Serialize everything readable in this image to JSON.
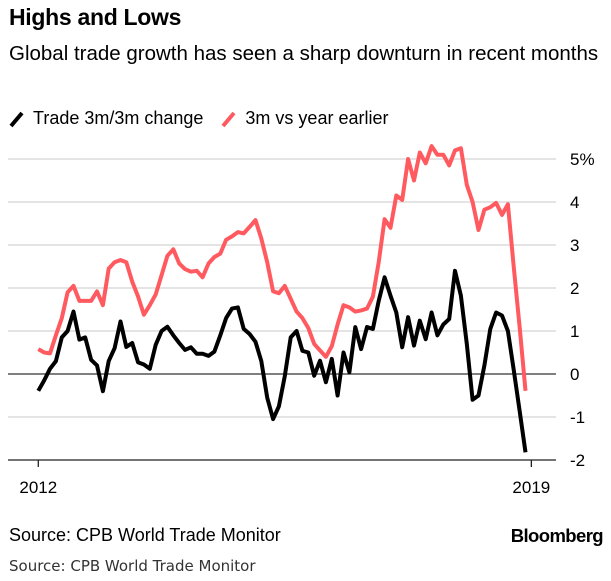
{
  "header": {
    "title": "Highs and Lows",
    "subtitle": "Global trade growth has seen a sharp downturn in recent months"
  },
  "legend": [
    {
      "label": "Trade 3m/3m change",
      "color": "#000000",
      "icon": "line-swatch-icon"
    },
    {
      "label": "3m vs year earlier",
      "color": "#ff5a5f",
      "icon": "line-swatch-icon"
    }
  ],
  "footer": {
    "source": "Source: CPB World Trade Monitor",
    "brand": "Bloomberg",
    "caption": "Source: CPB World Trade Monitor"
  },
  "chart_data": {
    "type": "line",
    "title": "Highs and Lows",
    "subtitle": "Global trade growth has seen a sharp downturn in recent months",
    "xlabel": "",
    "ylabel": "",
    "x_start": "2012-01",
    "x_end": "2018-12",
    "frequency": "monthly",
    "x_ticks": [
      {
        "label": "2012",
        "year": 2012
      },
      {
        "label": "2019",
        "year": 2019
      }
    ],
    "xlim": [
      2011.57,
      2019.35
    ],
    "ylim": [
      -2,
      5
    ],
    "y_ticks": [
      {
        "value": 5,
        "label": "5%"
      },
      {
        "value": 4,
        "label": "4"
      },
      {
        "value": 3,
        "label": "3"
      },
      {
        "value": 2,
        "label": "2"
      },
      {
        "value": 1,
        "label": "1"
      },
      {
        "value": 0,
        "label": "0"
      },
      {
        "value": -1,
        "label": "-1"
      },
      {
        "value": -2,
        "label": "-2"
      }
    ],
    "y_axis_position": "right",
    "grid": true,
    "legend_position": "top-left",
    "series": [
      {
        "name": "Trade 3m/3m change",
        "color": "#000000",
        "values": [
          -0.39,
          -0.15,
          0.12,
          0.3,
          0.85,
          1.0,
          1.45,
          0.8,
          0.85,
          0.33,
          0.2,
          -0.4,
          0.3,
          0.6,
          1.22,
          0.63,
          0.72,
          0.27,
          0.22,
          0.12,
          0.68,
          1.0,
          1.1,
          0.9,
          0.72,
          0.56,
          0.62,
          0.47,
          0.47,
          0.42,
          0.52,
          0.9,
          1.3,
          1.52,
          1.55,
          1.05,
          0.93,
          0.75,
          0.3,
          -0.55,
          -1.05,
          -0.75,
          -0.05,
          0.85,
          1.0,
          0.54,
          0.5,
          -0.04,
          0.31,
          -0.19,
          0.35,
          -0.5,
          0.5,
          0.04,
          1.09,
          0.58,
          1.09,
          1.05,
          1.7,
          2.25,
          1.82,
          1.43,
          0.62,
          1.32,
          0.66,
          1.24,
          0.81,
          1.43,
          0.9,
          1.15,
          1.28,
          2.4,
          1.82,
          0.7,
          -0.6,
          -0.5,
          0.2,
          1.05,
          1.43,
          1.36,
          1.0,
          0.1,
          -0.85,
          -1.82
        ]
      },
      {
        "name": "3m vs year earlier",
        "color": "#ff5a5f",
        "values": [
          0.58,
          0.5,
          0.48,
          0.9,
          1.3,
          1.9,
          2.05,
          1.7,
          1.7,
          1.7,
          1.92,
          1.6,
          2.45,
          2.6,
          2.65,
          2.6,
          2.15,
          1.8,
          1.38,
          1.6,
          1.85,
          2.3,
          2.75,
          2.9,
          2.57,
          2.44,
          2.38,
          2.4,
          2.25,
          2.57,
          2.72,
          2.8,
          3.12,
          3.2,
          3.3,
          3.27,
          3.42,
          3.58,
          3.15,
          2.6,
          1.92,
          1.88,
          2.05,
          1.75,
          1.45,
          1.3,
          1.07,
          0.7,
          0.55,
          0.4,
          0.65,
          1.15,
          1.6,
          1.55,
          1.45,
          1.48,
          1.52,
          1.8,
          2.6,
          3.6,
          3.4,
          4.15,
          4.05,
          5.0,
          4.5,
          5.15,
          4.9,
          5.3,
          5.1,
          5.1,
          4.85,
          5.2,
          5.25,
          4.4,
          4.0,
          3.35,
          3.82,
          3.88,
          3.98,
          3.7,
          3.95,
          2.5,
          1.1,
          -0.39
        ]
      }
    ]
  }
}
